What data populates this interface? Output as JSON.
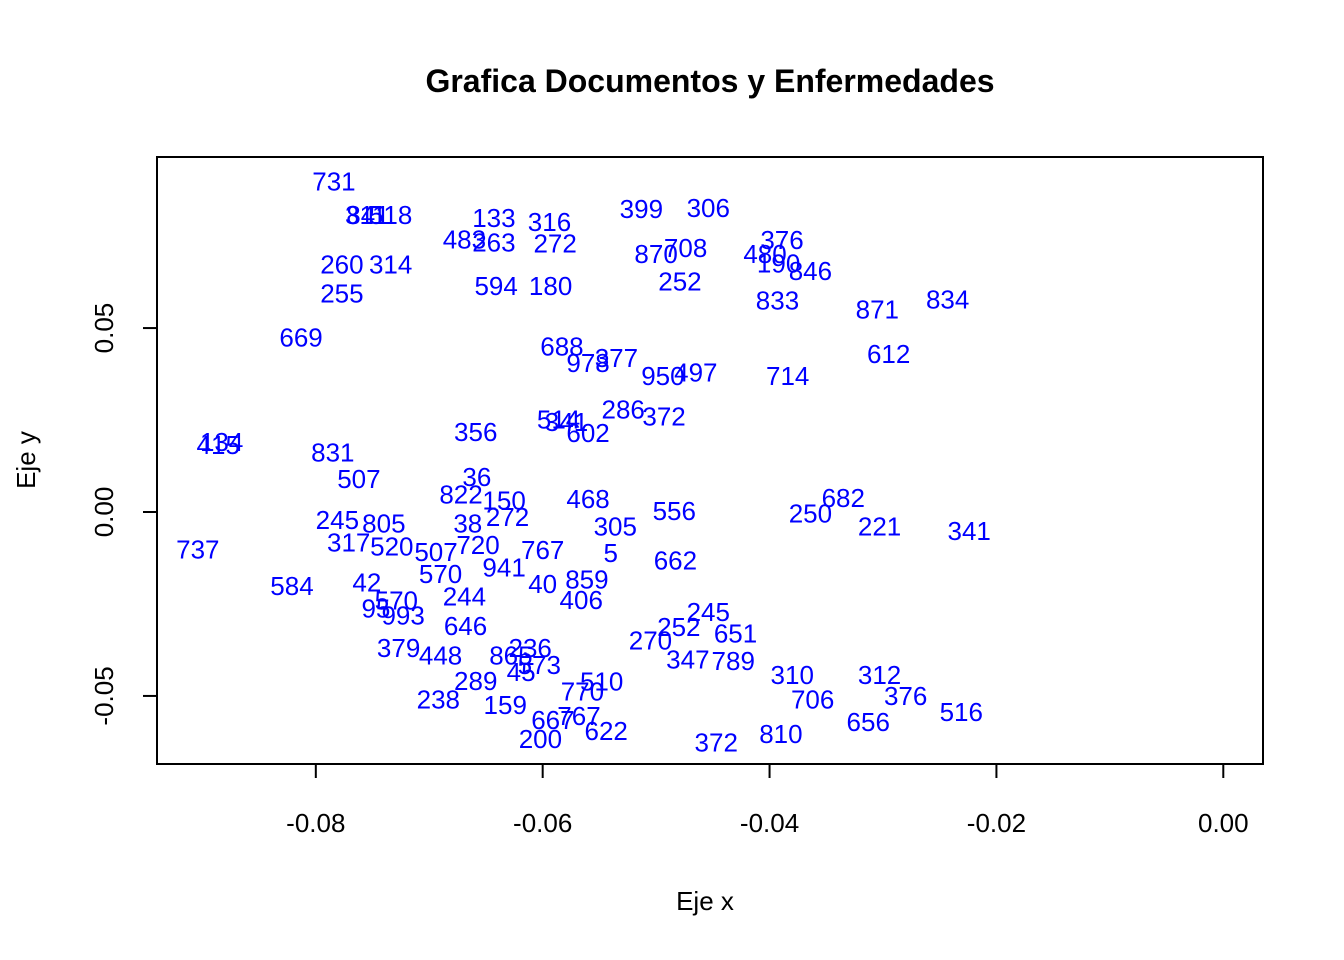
{
  "chart_data": {
    "type": "scatter",
    "title": "Grafica Documentos y Enfermedades",
    "xlabel": "Eje x",
    "ylabel": "Eje y",
    "xlim": [
      -0.094,
      0.0035
    ],
    "ylim": [
      -0.0685,
      0.0965
    ],
    "x_ticks": [
      {
        "value": -0.08,
        "label": "-0.08"
      },
      {
        "value": -0.06,
        "label": "-0.06"
      },
      {
        "value": -0.04,
        "label": "-0.04"
      },
      {
        "value": -0.02,
        "label": "-0.02"
      },
      {
        "value": 0.0,
        "label": "0.00"
      }
    ],
    "y_ticks": [
      {
        "value": -0.05,
        "label": "-0.05"
      },
      {
        "value": 0.0,
        "label": "0.00"
      },
      {
        "value": 0.05,
        "label": "0.05"
      }
    ],
    "marker_color": "#0000ff",
    "grid": false,
    "points": [
      {
        "label": "731",
        "x": -0.0784,
        "y": 0.0899
      },
      {
        "label": "841",
        "x": -0.0754,
        "y": 0.0807
      },
      {
        "label": "518",
        "x": -0.0734,
        "y": 0.0807
      },
      {
        "label": "311",
        "x": -0.0756,
        "y": 0.0807
      },
      {
        "label": "133",
        "x": -0.0643,
        "y": 0.0799
      },
      {
        "label": "316",
        "x": -0.0594,
        "y": 0.0788
      },
      {
        "label": "483",
        "x": -0.0669,
        "y": 0.0741
      },
      {
        "label": "263",
        "x": -0.0643,
        "y": 0.0733
      },
      {
        "label": "272",
        "x": -0.0589,
        "y": 0.073
      },
      {
        "label": "260",
        "x": -0.0777,
        "y": 0.0673
      },
      {
        "label": "314",
        "x": -0.0734,
        "y": 0.0673
      },
      {
        "label": "594",
        "x": -0.0641,
        "y": 0.0614
      },
      {
        "label": "255",
        "x": -0.0777,
        "y": 0.0594
      },
      {
        "label": "180",
        "x": -0.0593,
        "y": 0.0614
      },
      {
        "label": "399",
        "x": -0.0513,
        "y": 0.0823
      },
      {
        "label": "306",
        "x": -0.0454,
        "y": 0.0826
      },
      {
        "label": "708",
        "x": -0.0474,
        "y": 0.0717
      },
      {
        "label": "870",
        "x": -0.05,
        "y": 0.0702
      },
      {
        "label": "252",
        "x": -0.0479,
        "y": 0.0627
      },
      {
        "label": "376",
        "x": -0.0389,
        "y": 0.074
      },
      {
        "label": "480",
        "x": -0.0404,
        "y": 0.0702
      },
      {
        "label": "190",
        "x": -0.0392,
        "y": 0.0676
      },
      {
        "label": "846",
        "x": -0.0364,
        "y": 0.0655
      },
      {
        "label": "833",
        "x": -0.0393,
        "y": 0.0575
      },
      {
        "label": "834",
        "x": -0.0243,
        "y": 0.0577
      },
      {
        "label": "871",
        "x": -0.0305,
        "y": 0.055
      },
      {
        "label": "669",
        "x": -0.0813,
        "y": 0.0474
      },
      {
        "label": "688",
        "x": -0.0583,
        "y": 0.045
      },
      {
        "label": "377",
        "x": -0.0535,
        "y": 0.0418
      },
      {
        "label": "978",
        "x": -0.056,
        "y": 0.0405
      },
      {
        "label": "950",
        "x": -0.0494,
        "y": 0.037
      },
      {
        "label": "497",
        "x": -0.0465,
        "y": 0.0379
      },
      {
        "label": "612",
        "x": -0.0295,
        "y": 0.043
      },
      {
        "label": "714",
        "x": -0.0384,
        "y": 0.037
      },
      {
        "label": "286",
        "x": -0.0529,
        "y": 0.0278
      },
      {
        "label": "372",
        "x": -0.0493,
        "y": 0.026
      },
      {
        "label": "356",
        "x": -0.0659,
        "y": 0.0218
      },
      {
        "label": "514",
        "x": -0.0586,
        "y": 0.0252
      },
      {
        "label": "341",
        "x": -0.0579,
        "y": 0.0245
      },
      {
        "label": "602",
        "x": -0.056,
        "y": 0.0215
      },
      {
        "label": "134",
        "x": -0.0883,
        "y": 0.019
      },
      {
        "label": "415",
        "x": -0.0886,
        "y": 0.0182
      },
      {
        "label": "831",
        "x": -0.0785,
        "y": 0.0162
      },
      {
        "label": "507",
        "x": -0.0762,
        "y": 0.009
      },
      {
        "label": "36",
        "x": -0.0658,
        "y": 0.0095
      },
      {
        "label": "822",
        "x": -0.0672,
        "y": 0.0047
      },
      {
        "label": "150",
        "x": -0.0634,
        "y": 0.0031
      },
      {
        "label": "468",
        "x": -0.056,
        "y": 0.0035
      },
      {
        "label": "556",
        "x": -0.0484,
        "y": 0.0003
      },
      {
        "label": "245",
        "x": -0.0781,
        "y": -0.0022
      },
      {
        "label": "805",
        "x": -0.074,
        "y": -0.0031
      },
      {
        "label": "38",
        "x": -0.0666,
        "y": -0.0031
      },
      {
        "label": "272",
        "x": -0.0631,
        "y": -0.0013
      },
      {
        "label": "305",
        "x": -0.0536,
        "y": -0.004
      },
      {
        "label": "250",
        "x": -0.0364,
        "y": -0.0004
      },
      {
        "label": "682",
        "x": -0.0335,
        "y": 0.0038
      },
      {
        "label": "221",
        "x": -0.0303,
        "y": -0.0039
      },
      {
        "label": "341",
        "x": -0.0224,
        "y": -0.0051
      },
      {
        "label": "737",
        "x": -0.0904,
        "y": -0.0102
      },
      {
        "label": "317",
        "x": -0.0771,
        "y": -0.0083
      },
      {
        "label": "520",
        "x": -0.0733,
        "y": -0.0094
      },
      {
        "label": "720",
        "x": -0.0657,
        "y": -0.009
      },
      {
        "label": "767",
        "x": -0.06,
        "y": -0.0103
      },
      {
        "label": "507",
        "x": -0.0694,
        "y": -0.0109
      },
      {
        "label": "5",
        "x": -0.054,
        "y": -0.0112
      },
      {
        "label": "662",
        "x": -0.0483,
        "y": -0.0132
      },
      {
        "label": "941",
        "x": -0.0634,
        "y": -0.0151
      },
      {
        "label": "570",
        "x": -0.069,
        "y": -0.0168
      },
      {
        "label": "584",
        "x": -0.0821,
        "y": -0.0201
      },
      {
        "label": "42",
        "x": -0.0755,
        "y": -0.0191
      },
      {
        "label": "40",
        "x": -0.06,
        "y": -0.0196
      },
      {
        "label": "859",
        "x": -0.0561,
        "y": -0.0184
      },
      {
        "label": "406",
        "x": -0.0566,
        "y": -0.0239
      },
      {
        "label": "244",
        "x": -0.0669,
        "y": -0.023
      },
      {
        "label": "570",
        "x": -0.0729,
        "y": -0.024
      },
      {
        "label": "993",
        "x": -0.0723,
        "y": -0.0281
      },
      {
        "label": "95",
        "x": -0.0747,
        "y": -0.0262
      },
      {
        "label": "646",
        "x": -0.0668,
        "y": -0.031
      },
      {
        "label": "245",
        "x": -0.0454,
        "y": -0.0272
      },
      {
        "label": "252",
        "x": -0.048,
        "y": -0.0312
      },
      {
        "label": "270",
        "x": -0.0505,
        "y": -0.0349
      },
      {
        "label": "651",
        "x": -0.043,
        "y": -0.033
      },
      {
        "label": "379",
        "x": -0.0727,
        "y": -0.037
      },
      {
        "label": "448",
        "x": -0.069,
        "y": -0.039
      },
      {
        "label": "865",
        "x": -0.0628,
        "y": -0.039
      },
      {
        "label": "236",
        "x": -0.0611,
        "y": -0.037
      },
      {
        "label": "347",
        "x": -0.0472,
        "y": -0.0401
      },
      {
        "label": "789",
        "x": -0.0432,
        "y": -0.0405
      },
      {
        "label": "573",
        "x": -0.0603,
        "y": -0.0416
      },
      {
        "label": "45",
        "x": -0.0619,
        "y": -0.0435
      },
      {
        "label": "310",
        "x": -0.038,
        "y": -0.0443
      },
      {
        "label": "312",
        "x": -0.0303,
        "y": -0.0443
      },
      {
        "label": "289",
        "x": -0.0659,
        "y": -0.046
      },
      {
        "label": "510",
        "x": -0.0548,
        "y": -0.0461
      },
      {
        "label": "770",
        "x": -0.0565,
        "y": -0.0488
      },
      {
        "label": "238",
        "x": -0.0692,
        "y": -0.051
      },
      {
        "label": "159",
        "x": -0.0633,
        "y": -0.0525
      },
      {
        "label": "667",
        "x": -0.0591,
        "y": -0.0566
      },
      {
        "label": "767",
        "x": -0.0568,
        "y": -0.0555
      },
      {
        "label": "622",
        "x": -0.0544,
        "y": -0.0595
      },
      {
        "label": "200",
        "x": -0.0602,
        "y": -0.0617
      },
      {
        "label": "372",
        "x": -0.0447,
        "y": -0.0626
      },
      {
        "label": "810",
        "x": -0.039,
        "y": -0.0604
      },
      {
        "label": "656",
        "x": -0.0313,
        "y": -0.0571
      },
      {
        "label": "516",
        "x": -0.0231,
        "y": -0.0543
      },
      {
        "label": "376",
        "x": -0.028,
        "y": -0.05
      },
      {
        "label": "706",
        "x": -0.0362,
        "y": -0.051
      }
    ]
  }
}
